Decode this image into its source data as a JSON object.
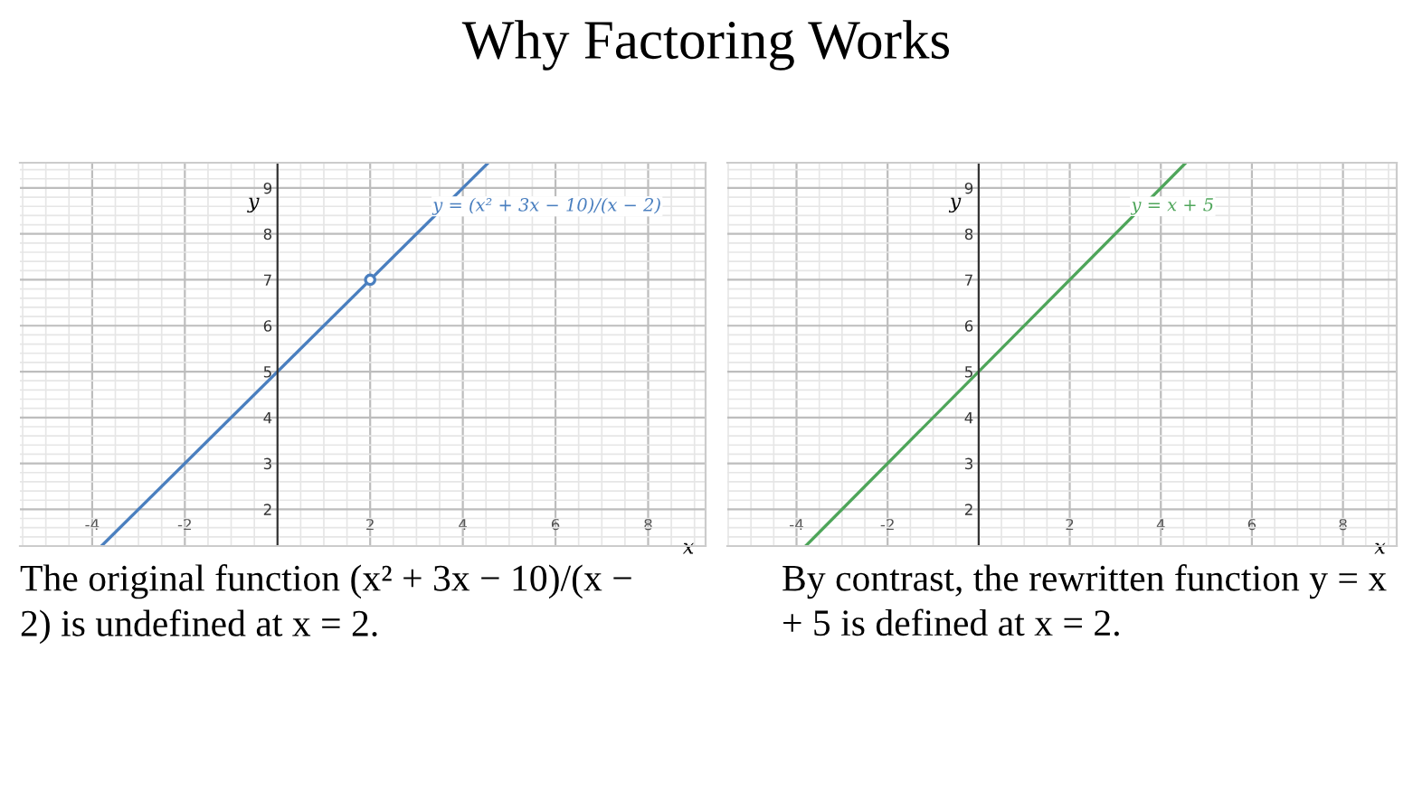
{
  "chart_data": [
    {
      "type": "line",
      "title": "Why Factoring Works",
      "xlabel": "x",
      "ylabel": "y",
      "xlim": [
        -5.56,
        9.24
      ],
      "ylim": [
        1.2,
        9.55
      ],
      "xticks": [
        -4,
        -2,
        2,
        4,
        6,
        8
      ],
      "yticks": [
        2,
        3,
        4,
        5,
        6,
        7,
        8,
        9
      ],
      "grid": true,
      "series": [
        {
          "name": "y = (x² + 3x − 10)/(x − 2)",
          "color": "#4a7fbf",
          "x": [
            -3.8,
            4.55
          ],
          "values": [
            1.2,
            9.55
          ],
          "marker": "none"
        },
        {
          "type": "scatter",
          "color": "#4a7fbf",
          "x": [
            2
          ],
          "values": [
            7
          ],
          "marker": "circle"
        }
      ],
      "annotations": [
        "The original function (x² + 3x − 10)/(x − 2) is undefined at x = 2."
      ]
    },
    {
      "type": "line",
      "xlabel": "x",
      "ylabel": "y",
      "xlim": [
        -5.52,
        9.18
      ],
      "ylim": [
        1.2,
        9.55
      ],
      "xticks": [
        -4,
        -2,
        2,
        4,
        6,
        8
      ],
      "yticks": [
        2,
        3,
        4,
        5,
        6,
        7,
        8,
        9
      ],
      "grid": true,
      "series": [
        {
          "name": "y = x + 5",
          "color": "#4ea55a",
          "x": [
            -3.8,
            4.55
          ],
          "values": [
            1.2,
            9.55
          ],
          "marker": "none"
        }
      ],
      "annotations": [
        "By contrast, the rewritten function y = x + 5 is defined at x = 2."
      ]
    }
  ]
}
